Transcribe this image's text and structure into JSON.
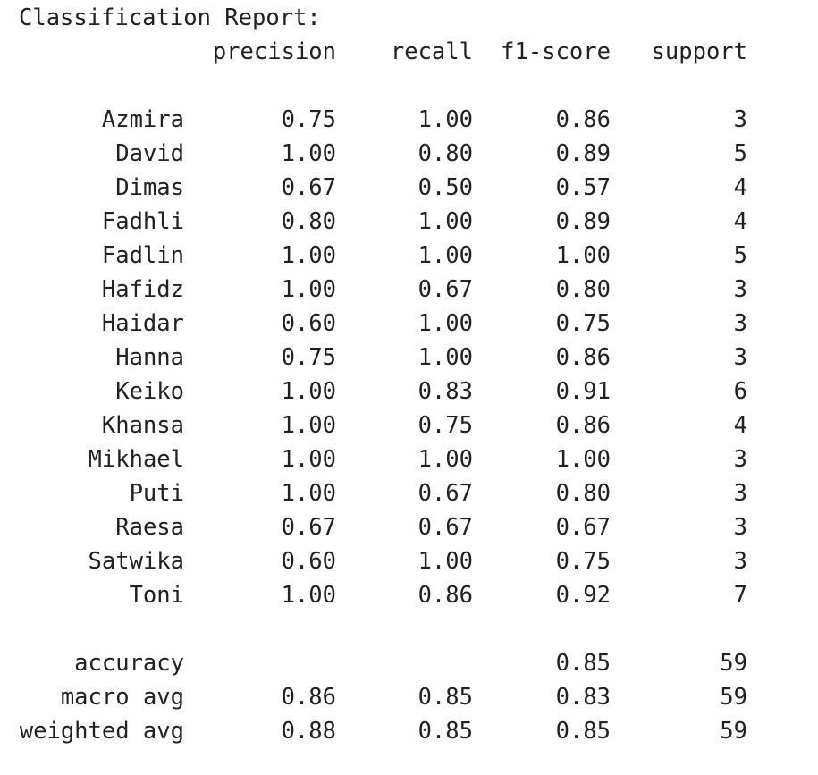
{
  "title": "Classification Report:",
  "headers": {
    "precision": "precision",
    "recall": "recall",
    "f1": "f1-score",
    "support": "support"
  },
  "rows": [
    {
      "label": "Azmira",
      "precision": "0.75",
      "recall": "1.00",
      "f1": "0.86",
      "support": "3"
    },
    {
      "label": "David",
      "precision": "1.00",
      "recall": "0.80",
      "f1": "0.89",
      "support": "5"
    },
    {
      "label": "Dimas",
      "precision": "0.67",
      "recall": "0.50",
      "f1": "0.57",
      "support": "4"
    },
    {
      "label": "Fadhli",
      "precision": "0.80",
      "recall": "1.00",
      "f1": "0.89",
      "support": "4"
    },
    {
      "label": "Fadlin",
      "precision": "1.00",
      "recall": "1.00",
      "f1": "1.00",
      "support": "5"
    },
    {
      "label": "Hafidz",
      "precision": "1.00",
      "recall": "0.67",
      "f1": "0.80",
      "support": "3"
    },
    {
      "label": "Haidar",
      "precision": "0.60",
      "recall": "1.00",
      "f1": "0.75",
      "support": "3"
    },
    {
      "label": "Hanna",
      "precision": "0.75",
      "recall": "1.00",
      "f1": "0.86",
      "support": "3"
    },
    {
      "label": "Keiko",
      "precision": "1.00",
      "recall": "0.83",
      "f1": "0.91",
      "support": "6"
    },
    {
      "label": "Khansa",
      "precision": "1.00",
      "recall": "0.75",
      "f1": "0.86",
      "support": "4"
    },
    {
      "label": "Mikhael",
      "precision": "1.00",
      "recall": "1.00",
      "f1": "1.00",
      "support": "3"
    },
    {
      "label": "Puti",
      "precision": "1.00",
      "recall": "0.67",
      "f1": "0.80",
      "support": "3"
    },
    {
      "label": "Raesa",
      "precision": "0.67",
      "recall": "0.67",
      "f1": "0.67",
      "support": "3"
    },
    {
      "label": "Satwika",
      "precision": "0.60",
      "recall": "1.00",
      "f1": "0.75",
      "support": "3"
    },
    {
      "label": "Toni",
      "precision": "1.00",
      "recall": "0.86",
      "f1": "0.92",
      "support": "7"
    }
  ],
  "summary": [
    {
      "label": "accuracy",
      "precision": "",
      "recall": "",
      "f1": "0.85",
      "support": "59"
    },
    {
      "label": "macro avg",
      "precision": "0.86",
      "recall": "0.85",
      "f1": "0.83",
      "support": "59"
    },
    {
      "label": "weighted avg",
      "precision": "0.88",
      "recall": "0.85",
      "f1": "0.85",
      "support": "59"
    }
  ]
}
